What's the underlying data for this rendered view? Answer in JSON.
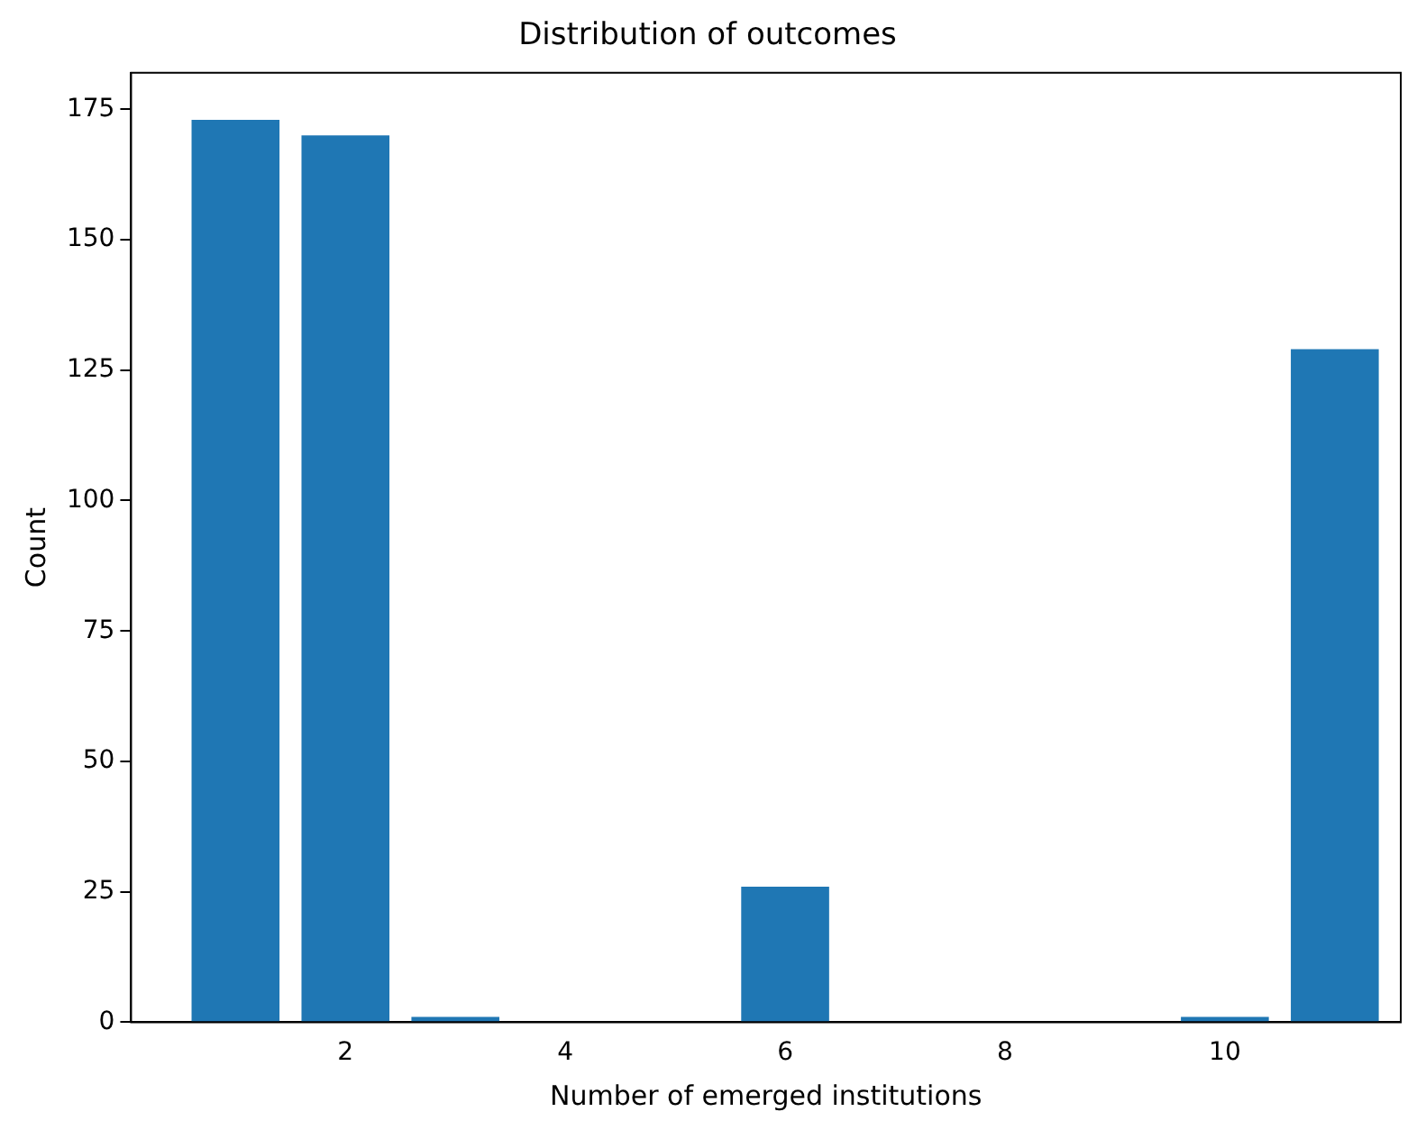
{
  "chart_data": {
    "type": "bar",
    "title": "Distribution of outcomes",
    "xlabel": "Number of emerged institutions",
    "ylabel": "Count",
    "x": [
      1,
      2,
      3,
      6,
      10,
      11
    ],
    "values": [
      173,
      170,
      1,
      26,
      1,
      129
    ],
    "color": "#1f77b4",
    "xlim": [
      0.05,
      11.6
    ],
    "xticks": [
      2,
      4,
      6,
      8,
      10
    ],
    "ylim": [
      0,
      182
    ],
    "yticks": [
      0,
      25,
      50,
      75,
      100,
      125,
      150,
      175
    ],
    "grid": false,
    "legend": false
  }
}
